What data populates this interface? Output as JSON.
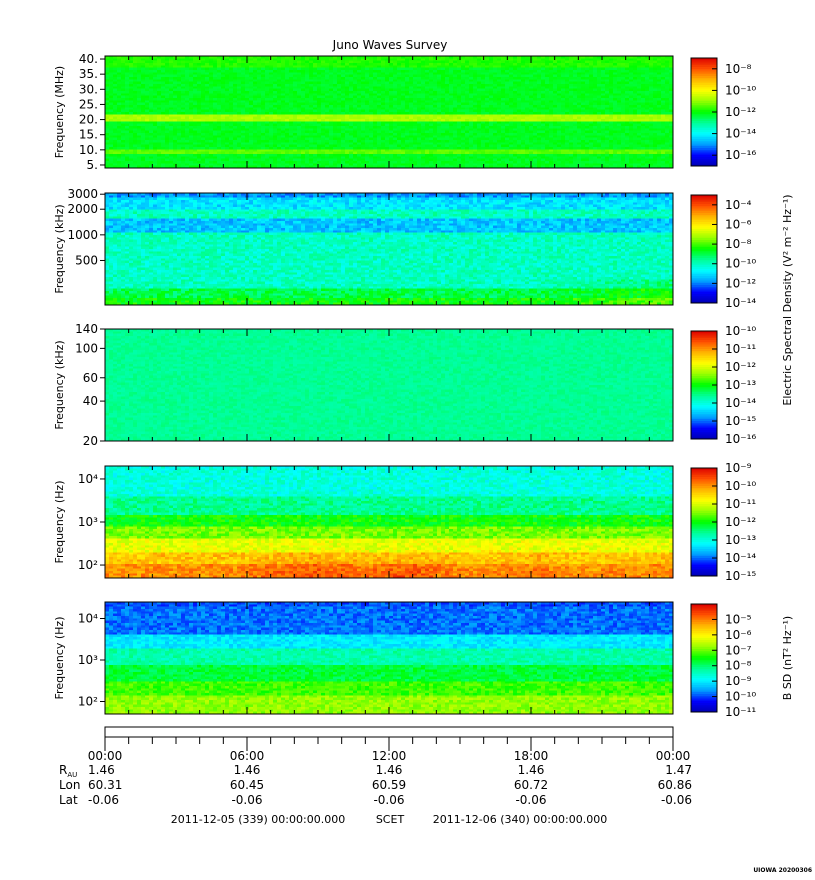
{
  "chart_data": [
    {
      "type": "heatmap",
      "title": "Juno Waves Survey",
      "ylabel": "Frequency (MHz)",
      "ylim": [
        4,
        41
      ],
      "yscale": "linear",
      "yticks": [
        5,
        10,
        15,
        20,
        25,
        30,
        35,
        40
      ],
      "ytick_labels": [
        "5.",
        "10.",
        "15.",
        "20.",
        "25.",
        "30.",
        "35.",
        "40."
      ],
      "colorbar": {
        "scale": "log",
        "range": [
          1e-17,
          1e-07
        ],
        "tick_exponents": [
          "-8",
          "-10",
          "-12",
          "-14",
          "-16"
        ],
        "tick_values": [
          1e-08,
          1e-10,
          1e-12,
          1e-14,
          1e-16
        ]
      },
      "bands": [
        {
          "ylow": 4,
          "yhigh": 41,
          "level": 0.48
        },
        {
          "ylow": 8.5,
          "yhigh": 10,
          "level": 0.56
        },
        {
          "ylow": 19.5,
          "yhigh": 22,
          "level": 0.62
        },
        {
          "ylow": 37,
          "yhigh": 41,
          "level": 0.52
        }
      ],
      "noise": 0.02,
      "temporal": "flat"
    },
    {
      "type": "heatmap",
      "ylabel": "Frequency (kHz)",
      "ylim": [
        150,
        3100
      ],
      "yscale": "log",
      "yticks": [
        500,
        1000,
        2000,
        3000
      ],
      "ytick_labels": [
        "500",
        "1000",
        "2000",
        "3000"
      ],
      "colorbar": {
        "label": "Electric Spectral Density (V² m⁻² Hz⁻¹)",
        "scale": "log",
        "range": [
          1e-14,
          0.001
        ],
        "tick_exponents": [
          "-4",
          "-6",
          "-8",
          "-10",
          "-12",
          "-14"
        ],
        "tick_values": [
          0.0001,
          1e-06,
          1e-08,
          1e-10,
          1e-12,
          1e-14
        ]
      },
      "bands": [
        {
          "ylow": 150,
          "yhigh": 3100,
          "level": 0.36
        },
        {
          "ylow": 150,
          "yhigh": 230,
          "level": 0.45
        },
        {
          "ylow": 150,
          "yhigh": 185,
          "level": 0.5
        },
        {
          "ylow": 1050,
          "yhigh": 1550,
          "level": 0.24
        },
        {
          "ylow": 2000,
          "yhigh": 2800,
          "level": 0.27
        },
        {
          "ylow": 2800,
          "yhigh": 3100,
          "level": 0.2
        }
      ],
      "noise": 0.05,
      "temporal": "rise-at-end"
    },
    {
      "type": "heatmap",
      "ylabel": "Frequency (kHz)",
      "ylim": [
        20,
        140
      ],
      "yscale": "log",
      "yticks": [
        20,
        40,
        60,
        100,
        140
      ],
      "ytick_labels": [
        "20",
        "40",
        "60",
        "100",
        "140"
      ],
      "colorbar": {
        "scale": "log",
        "range": [
          1e-16,
          1e-10
        ],
        "tick_exponents": [
          "-10",
          "-11",
          "-12",
          "-13",
          "-14",
          "-15",
          "-16"
        ],
        "tick_values": [
          1e-10,
          1e-11,
          1e-12,
          1e-13,
          1e-14,
          1e-15,
          1e-16
        ]
      },
      "bands": [
        {
          "ylow": 20,
          "yhigh": 140,
          "level": 0.4
        }
      ],
      "noise": 0.02,
      "temporal": "flat"
    },
    {
      "type": "heatmap",
      "ylabel": "Frequency (Hz)",
      "ylim": [
        50,
        20000
      ],
      "yscale": "log",
      "yticks": [
        100,
        1000,
        10000
      ],
      "ytick_labels": [
        "10²",
        "10³",
        "10⁴"
      ],
      "colorbar": {
        "scale": "log",
        "range": [
          1e-15,
          1e-09
        ],
        "tick_exponents": [
          "-9",
          "-10",
          "-11",
          "-12",
          "-13",
          "-14",
          "-15"
        ],
        "tick_values": [
          1e-09,
          1e-10,
          1e-11,
          1e-12,
          1e-13,
          1e-14,
          1e-15
        ]
      },
      "bands": [
        {
          "ylow": 4000,
          "yhigh": 20000,
          "level": 0.33
        },
        {
          "ylow": 1500,
          "yhigh": 4000,
          "level": 0.4
        },
        {
          "ylow": 800,
          "yhigh": 1500,
          "level": 0.5
        },
        {
          "ylow": 400,
          "yhigh": 800,
          "level": 0.58
        },
        {
          "ylow": 200,
          "yhigh": 400,
          "level": 0.68
        },
        {
          "ylow": 100,
          "yhigh": 200,
          "level": 0.76
        },
        {
          "ylow": 50,
          "yhigh": 100,
          "level": 0.82
        }
      ],
      "noise": 0.05,
      "temporal": "bursts"
    },
    {
      "type": "heatmap",
      "ylabel": "Frequency (Hz)",
      "ylim": [
        50,
        25000
      ],
      "yscale": "log",
      "yticks": [
        100,
        1000,
        10000
      ],
      "ytick_labels": [
        "10²",
        "10³",
        "10⁴"
      ],
      "colorbar": {
        "label": "B SD (nT² Hz⁻¹)",
        "scale": "log",
        "range": [
          1e-11,
          0.0001
        ],
        "tick_exponents": [
          "-5",
          "-6",
          "-7",
          "-8",
          "-9",
          "-10",
          "-11"
        ],
        "tick_values": [
          1e-05,
          1e-06,
          1e-07,
          1e-08,
          1e-09,
          1e-10,
          1e-11
        ]
      },
      "bands": [
        {
          "ylow": 20000,
          "yhigh": 25000,
          "level": 0.15
        },
        {
          "ylow": 4000,
          "yhigh": 20000,
          "level": 0.17
        },
        {
          "ylow": 2000,
          "yhigh": 4000,
          "level": 0.28
        },
        {
          "ylow": 800,
          "yhigh": 2000,
          "level": 0.38
        },
        {
          "ylow": 300,
          "yhigh": 800,
          "level": 0.46
        },
        {
          "ylow": 150,
          "yhigh": 300,
          "level": 0.54
        },
        {
          "ylow": 50,
          "yhigh": 150,
          "level": 0.6
        }
      ],
      "noise": 0.04,
      "temporal": "flat"
    }
  ],
  "colormap": [
    "#0000b4",
    "#0000ff",
    "#00a0ff",
    "#00ffff",
    "#00ff96",
    "#00ff00",
    "#96ff00",
    "#ffff00",
    "#ffb400",
    "#ff5000",
    "#dc0000"
  ],
  "time_axis": {
    "tick_labels": [
      "00:00",
      "06:00",
      "12:00",
      "18:00",
      "00:00"
    ],
    "rows": [
      {
        "label": "R",
        "sub": "AU",
        "values": [
          "1.46",
          "1.46",
          "1.46",
          "1.46",
          "1.47"
        ]
      },
      {
        "label": "Lon",
        "values": [
          "60.31",
          "60.45",
          "60.59",
          "60.72",
          "60.86"
        ]
      },
      {
        "label": "Lat",
        "values": [
          "-0.06",
          "-0.06",
          "-0.06",
          "-0.06",
          "-0.06"
        ]
      }
    ],
    "start_label": "2011-12-05 (339) 00:00:00.000",
    "scet_label": "SCET",
    "end_label": "2011-12-06 (340) 00:00:00.000"
  },
  "footer": "UIOWA 20200306"
}
